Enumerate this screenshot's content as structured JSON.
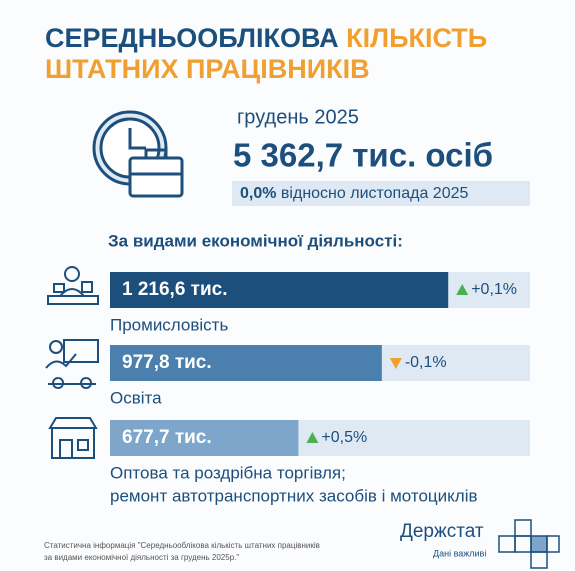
{
  "header": {
    "title_dark": "СЕРЕДНЬООБЛІКОВА",
    "title_accent_1": "КІЛЬКІСТЬ",
    "title_accent_2": "ШТАТНИХ ПРАЦІВНИКІВ"
  },
  "summary": {
    "period": "грудень 2025",
    "total": "5 362,7 тис. осіб",
    "change": "0,0%",
    "change_note": "відносно листопада 2025"
  },
  "sections": {
    "heading": "За видами економічної діяльності:",
    "items": [
      {
        "value": 1216.6,
        "value_label": "1 216,6 тис.",
        "change": "+0,1%",
        "name_lines": [
          "Промисловість"
        ],
        "color": "#1d4f7c"
      },
      {
        "value": 977.8,
        "value_label": "977,8 тис.",
        "change": "-0,1%",
        "name_lines": [
          "Освіта"
        ],
        "color": "#4a7fae"
      },
      {
        "value": 677.7,
        "value_label": "677,7 тис.",
        "change": "+0,5%",
        "name_lines": [
          "Оптова та роздрібна торгівля;",
          "ремонт автотранспортних засобів і мотоциклів"
        ],
        "color": "#7ea6cb"
      }
    ]
  },
  "footer": {
    "source_lines": [
      "Статистична інформація \"Середньооблікова кількість штатних працівників",
      "за видами економічної діяльності за грудень 2025р.\""
    ],
    "logo": "Держстат",
    "slogan": "Дані важливі"
  }
}
